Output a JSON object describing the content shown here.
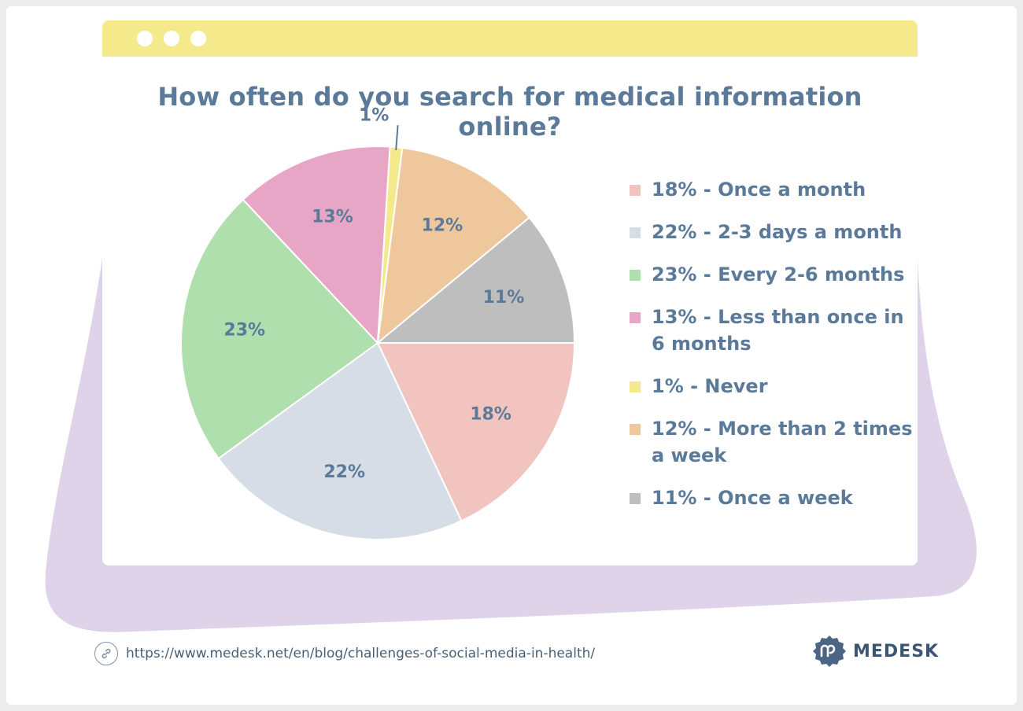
{
  "colors": {
    "title": "#5b7a99",
    "card_header": "#f4ea8c",
    "blob": "#dfd3ea",
    "brand": "#3c5672"
  },
  "chart_data": {
    "type": "pie",
    "title": "How often do you search for medical information online?",
    "slices": [
      {
        "label": "Once a month",
        "value": 18,
        "display": "18%",
        "legend": "18% - Once a month",
        "color": "#f2c4c0"
      },
      {
        "label": "2-3 days a month",
        "value": 22,
        "display": "22%",
        "legend": "22% - 2-3 days a month",
        "color": "#d6dde6"
      },
      {
        "label": "Every 2-6 months",
        "value": 23,
        "display": "23%",
        "legend": "23% - Every 2-6 months",
        "color": "#b0dfae"
      },
      {
        "label": "Less than once in 6 months",
        "value": 13,
        "display": "13%",
        "legend": "13% - Less than once in 6 months",
        "color": "#e8a6c6"
      },
      {
        "label": "Never",
        "value": 1,
        "display": "1%",
        "legend": "1% - Never",
        "color": "#f4ea8c"
      },
      {
        "label": "More than 2 times a week",
        "value": 12,
        "display": "12%",
        "legend": "12% - More than 2 times a week",
        "color": "#eec89c"
      },
      {
        "label": "Once a week",
        "value": 11,
        "display": "11%",
        "legend": "11% - Once a week",
        "color": "#bebebe"
      }
    ]
  },
  "footer": {
    "url": "https://www.medesk.net/en/blog/challenges-of-social-media-in-health/",
    "link_icon": "link-icon",
    "brand": "MEDESK",
    "brand_icon": "medesk-logo-icon"
  }
}
